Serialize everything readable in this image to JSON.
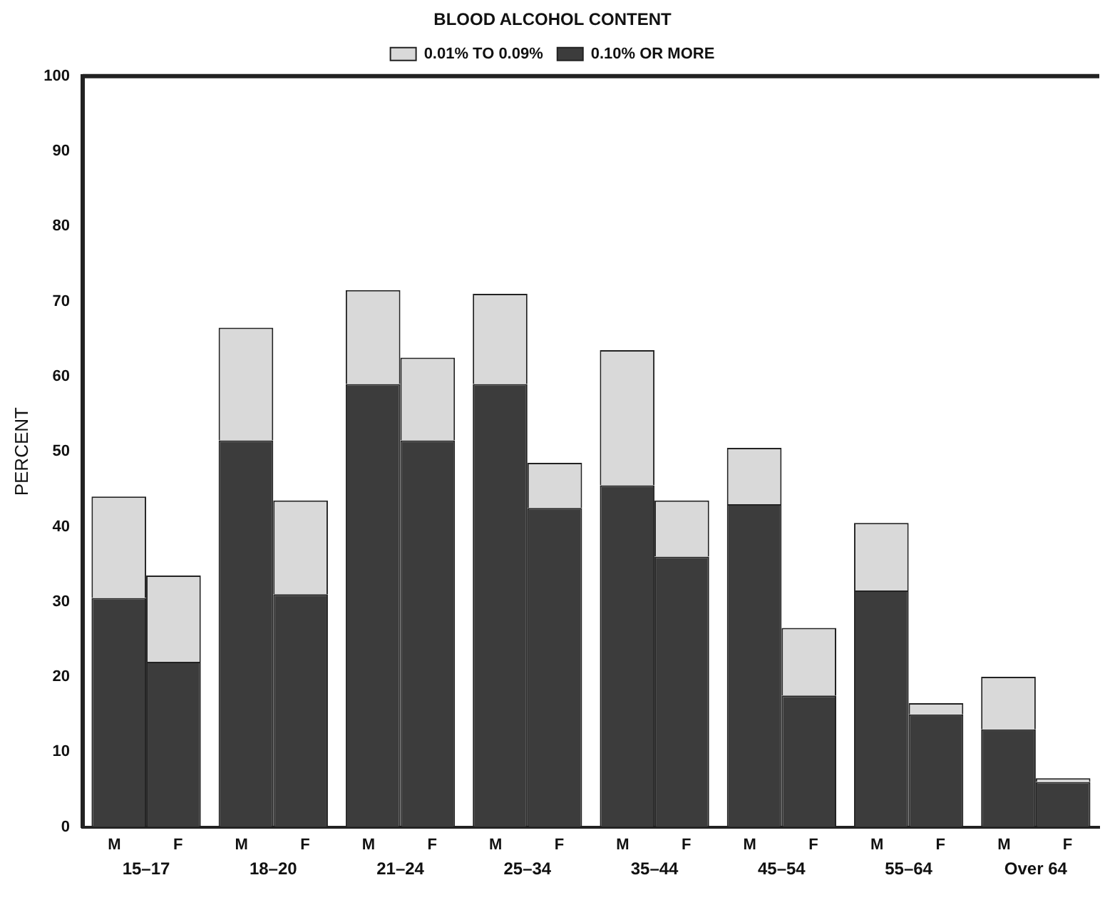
{
  "chart_data": {
    "type": "bar",
    "stacked": true,
    "ylabel": "PERCENT",
    "legend_title": "BLOOD ALCOHOL CONTENT",
    "legend": "top",
    "categories": [
      "M",
      "F",
      "M",
      "F",
      "M",
      "F",
      "M",
      "F",
      "M",
      "F",
      "M",
      "F",
      "M",
      "F",
      "M",
      "F"
    ],
    "series": [
      {
        "name": "0.10% OR MORE",
        "color": "#3c3c3c",
        "values": [
          30.5,
          22,
          51.5,
          31,
          59,
          51.5,
          59,
          42.5,
          45.5,
          36,
          43,
          17.5,
          31.5,
          15,
          13,
          6
        ]
      },
      {
        "name": "0.01% TO 0.09%",
        "color": "#d9d9d9",
        "values": [
          13.5,
          11.5,
          15,
          12.5,
          12.5,
          11,
          12,
          6,
          18,
          7.5,
          7.5,
          9,
          9,
          1.5,
          7,
          0.5
        ]
      }
    ],
    "ylim": [
      0,
      100
    ],
    "yticks": [
      0,
      10,
      20,
      30,
      40,
      50,
      60,
      70,
      80,
      90,
      100
    ],
    "grid": false,
    "annotations": [
      "15–17",
      "18–20",
      "21–24",
      "25–34",
      "35–44",
      "45–54",
      "55–64",
      "Over 64"
    ]
  }
}
